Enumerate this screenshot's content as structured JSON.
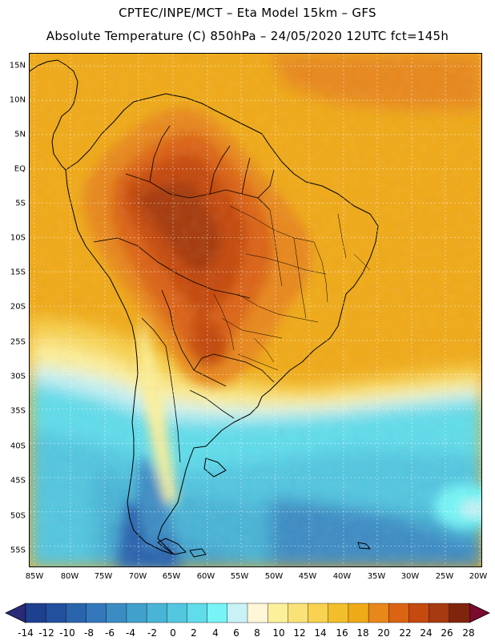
{
  "titles": {
    "line1": "CPTEC/INPE/MCT –  Eta Model 15km – GFS",
    "line2": "Absolute Temperature (C) 850hPa – 24/05/2020 12UTC fct=145h"
  },
  "map": {
    "variable": "Absolute Temperature",
    "units": "C",
    "level": "850hPa",
    "lat_range": [
      -58,
      17
    ],
    "lon_range": [
      -86,
      -20
    ],
    "lat_labels": [
      "15N",
      "10N",
      "5N",
      "EQ",
      "5S",
      "10S",
      "15S",
      "20S",
      "25S",
      "30S",
      "35S",
      "40S",
      "45S",
      "50S",
      "55S"
    ],
    "lat_values": [
      15,
      10,
      5,
      0,
      -5,
      -10,
      -15,
      -20,
      -25,
      -30,
      -35,
      -40,
      -45,
      -50,
      -55
    ],
    "lon_labels": [
      "85W",
      "80W",
      "75W",
      "70W",
      "65W",
      "60W",
      "55W",
      "50W",
      "45W",
      "40W",
      "35W",
      "30W",
      "25W",
      "20W"
    ],
    "lon_values": [
      -85,
      -80,
      -75,
      -70,
      -65,
      -60,
      -55,
      -50,
      -45,
      -40,
      -35,
      -30,
      -25,
      -20
    ],
    "region": "South America"
  },
  "colorbar": {
    "labels": [
      "-14",
      "-12",
      "-10",
      "-8",
      "-6",
      "-4",
      "-2",
      "0",
      "2",
      "4",
      "6",
      "8",
      "10",
      "12",
      "14",
      "16",
      "18",
      "20",
      "22",
      "24",
      "26",
      "28"
    ],
    "colors": [
      "#1f3f8f",
      "#23509d",
      "#2a64ad",
      "#3478bb",
      "#3c8cc4",
      "#42a0cc",
      "#49b4d6",
      "#53c6e0",
      "#60dcea",
      "#76f4f6",
      "#c8f2f6",
      "#fff6d8",
      "#fdf09a",
      "#fbe278",
      "#f8d250",
      "#f3be2c",
      "#efaa18",
      "#e8881a",
      "#db6414",
      "#c44a10",
      "#a63a10",
      "#80240e"
    ],
    "low_color": "#2a2a7a",
    "high_color": "#7a0a2e"
  }
}
